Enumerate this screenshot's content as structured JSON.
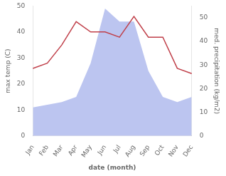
{
  "chart_data": {
    "type": "line",
    "categories": [
      "Jan",
      "Feb",
      "Mar",
      "Apr",
      "May",
      "Jun",
      "Jul",
      "Aug",
      "Sep",
      "Oct",
      "Nov",
      "Dec"
    ],
    "series": [
      {
        "type": "area",
        "color": "#bcc5f0",
        "values": [
          11,
          12,
          13,
          15,
          28,
          49,
          44,
          44,
          25,
          15,
          13,
          15
        ]
      },
      {
        "type": "line",
        "color": "#c0404a",
        "values": [
          26,
          28,
          35,
          44,
          40,
          40,
          38,
          46,
          38,
          38,
          26,
          24
        ]
      }
    ],
    "xlabel": "date (month)",
    "ylabel": "max temp (C)",
    "y2label": "med. precipitation (kg/m2)",
    "ylim": [
      0,
      50
    ],
    "yticks": [
      0,
      10,
      20,
      30,
      40,
      50
    ],
    "y2lim": [
      0,
      55
    ],
    "y2ticks": [
      0,
      10,
      20,
      30,
      40,
      50
    ],
    "grid": false
  }
}
